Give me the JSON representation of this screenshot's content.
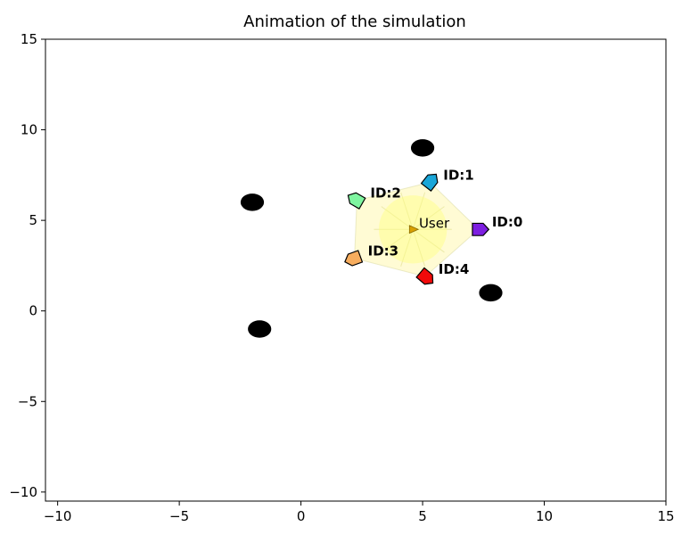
{
  "chart_data": {
    "type": "scatter",
    "title": "Animation of the simulation",
    "xlabel": "",
    "ylabel": "",
    "xlim": [
      -10.5,
      15
    ],
    "ylim": [
      -10.5,
      15
    ],
    "x_ticks": [
      -10,
      -5,
      0,
      5,
      10,
      15
    ],
    "y_ticks": [
      -10,
      -5,
      0,
      5,
      10,
      15
    ],
    "x_tick_labels": [
      "−10",
      "−5",
      "0",
      "5",
      "10",
      "15"
    ],
    "y_tick_labels": [
      "−10",
      "−5",
      "0",
      "5",
      "10",
      "15"
    ],
    "grid": false,
    "obstacles": [
      {
        "x": 5.0,
        "y": 9.0
      },
      {
        "x": -2.0,
        "y": 6.0
      },
      {
        "x": 7.8,
        "y": 1.0
      },
      {
        "x": -1.7,
        "y": -1.0
      }
    ],
    "user": {
      "label": "User",
      "x": 4.6,
      "y": 4.5,
      "color": "#d9a000"
    },
    "agents": [
      {
        "label": "ID:0",
        "x": 7.3,
        "y": 4.5,
        "heading": 0,
        "color": "#7d1fe0"
      },
      {
        "label": "ID:1",
        "x": 5.3,
        "y": 7.1,
        "heading": 52,
        "color": "#1aa6d8"
      },
      {
        "label": "ID:2",
        "x": 2.3,
        "y": 6.1,
        "heading": 150,
        "color": "#7ff5a0"
      },
      {
        "label": "ID:3",
        "x": 2.2,
        "y": 2.9,
        "heading": 200,
        "color": "#f7ad5e"
      },
      {
        "label": "ID:4",
        "x": 5.1,
        "y": 1.9,
        "heading": -40,
        "color": "#f20a0a"
      }
    ]
  }
}
